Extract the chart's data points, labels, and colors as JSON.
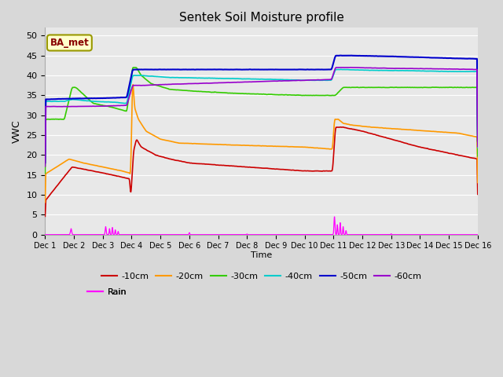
{
  "title": "Sentek Soil Moisture profile",
  "xlabel": "Time",
  "ylabel": "VWC",
  "annotation": "BA_met",
  "ylim": [
    0,
    52
  ],
  "xlim": [
    0,
    450
  ],
  "yticks": [
    0,
    5,
    10,
    15,
    20,
    25,
    30,
    35,
    40,
    45,
    50
  ],
  "xtick_labels": [
    "Dec 1",
    "Dec 2",
    "Dec 3",
    "Dec 4",
    "Dec 5",
    "Dec 6",
    "Dec 7",
    "Dec 8",
    "Dec 9",
    "Dec 10",
    "Dec 11",
    "Dec 12",
    "Dec 13",
    "Dec 14",
    "Dec 15",
    "Dec 16"
  ],
  "xtick_positions": [
    0,
    30,
    60,
    90,
    120,
    150,
    180,
    210,
    240,
    270,
    300,
    330,
    360,
    390,
    420,
    450
  ],
  "series_colors": {
    "-10cm": "#cc0000",
    "-20cm": "#ff9900",
    "-30cm": "#33cc00",
    "-40cm": "#00cccc",
    "-50cm": "#0000cc",
    "-60cm": "#9900cc",
    "Rain": "#ff00ff"
  },
  "background_color": "#e8e8e8",
  "grid_color": "#ffffff",
  "title_fontsize": 11,
  "figsize": [
    6.4,
    4.8
  ],
  "dpi": 100
}
